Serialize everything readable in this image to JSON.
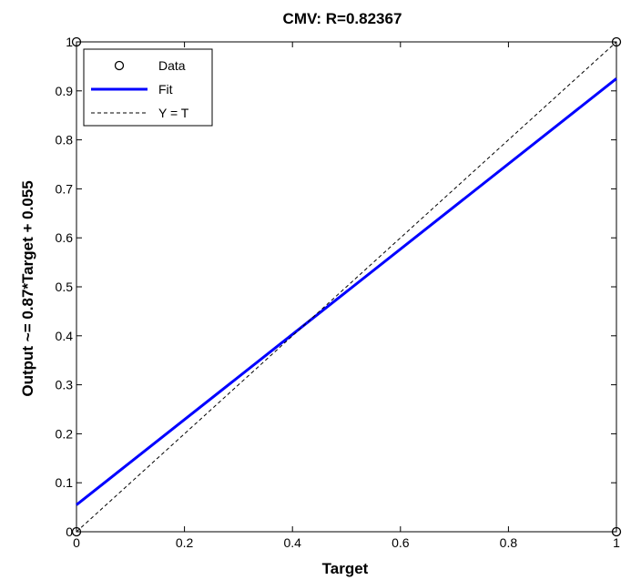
{
  "chart_data": {
    "type": "scatter",
    "title": "CMV: R=0.82367",
    "xlabel": "Target",
    "ylabel": "Output ~= 0.87*Target + 0.055",
    "xlim": [
      0,
      1
    ],
    "ylim": [
      0,
      1
    ],
    "xticks": [
      0,
      0.2,
      0.4,
      0.6,
      0.8,
      1
    ],
    "xtick_labels": [
      "0",
      "0.2",
      "0.4",
      "0.6",
      "0.8",
      "1"
    ],
    "yticks": [
      0,
      0.1,
      0.2,
      0.3,
      0.4,
      0.5,
      0.6,
      0.7,
      0.8,
      0.9,
      1
    ],
    "ytick_labels": [
      "0",
      "0.1",
      "0.2",
      "0.3",
      "0.4",
      "0.5",
      "0.6",
      "0.7",
      "0.8",
      "0.9",
      "1"
    ],
    "grid": false,
    "legend_position": "top-left",
    "series": [
      {
        "name": "Data",
        "kind": "markers",
        "marker": "open-circle",
        "color": "#000000",
        "points": [
          {
            "x": 0,
            "y": 0
          },
          {
            "x": 0,
            "y": 1
          },
          {
            "x": 1,
            "y": 0
          },
          {
            "x": 1,
            "y": 1
          }
        ]
      },
      {
        "name": "Fit",
        "kind": "line",
        "color": "#0000ff",
        "style": "solid",
        "points": [
          {
            "x": 0,
            "y": 0.055
          },
          {
            "x": 1,
            "y": 0.925
          }
        ]
      },
      {
        "name": "Y = T",
        "kind": "line",
        "color": "#000000",
        "style": "dashed",
        "points": [
          {
            "x": 0,
            "y": 0
          },
          {
            "x": 1,
            "y": 1
          }
        ]
      }
    ]
  }
}
